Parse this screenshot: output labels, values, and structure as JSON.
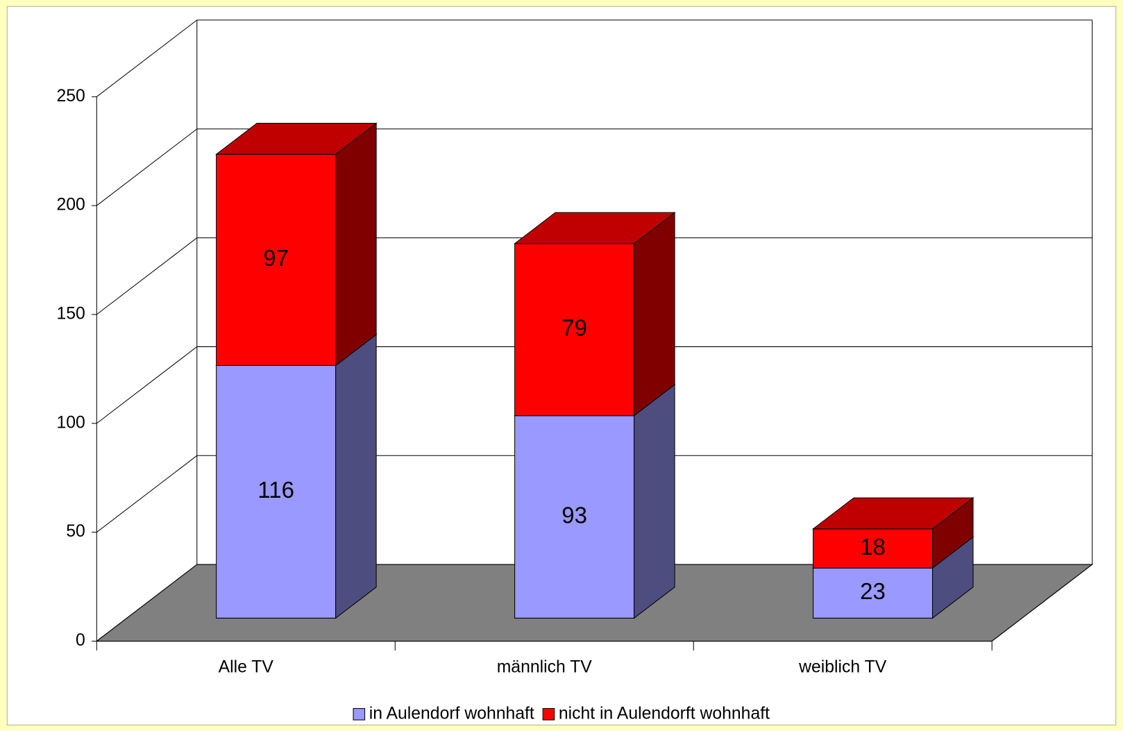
{
  "chart_data": {
    "type": "bar3d_stacked",
    "categories": [
      "Alle TV",
      "männlich TV",
      "weiblich TV"
    ],
    "series": [
      {
        "name": "in Aulendorf wohnhaft",
        "color": "#9999ff",
        "side_color": "#4d4d80",
        "top_color": "#b3b3ff",
        "values": [
          116,
          93,
          23
        ]
      },
      {
        "name": "nicht in Aulendorft wohnhaft",
        "color": "#ff0000",
        "side_color": "#800000",
        "top_color": "#c00000",
        "values": [
          97,
          79,
          18
        ]
      }
    ],
    "ylim": [
      0,
      250
    ],
    "yticks": [
      0,
      50,
      100,
      150,
      200,
      250
    ],
    "grid": true,
    "legend": "bottom"
  }
}
